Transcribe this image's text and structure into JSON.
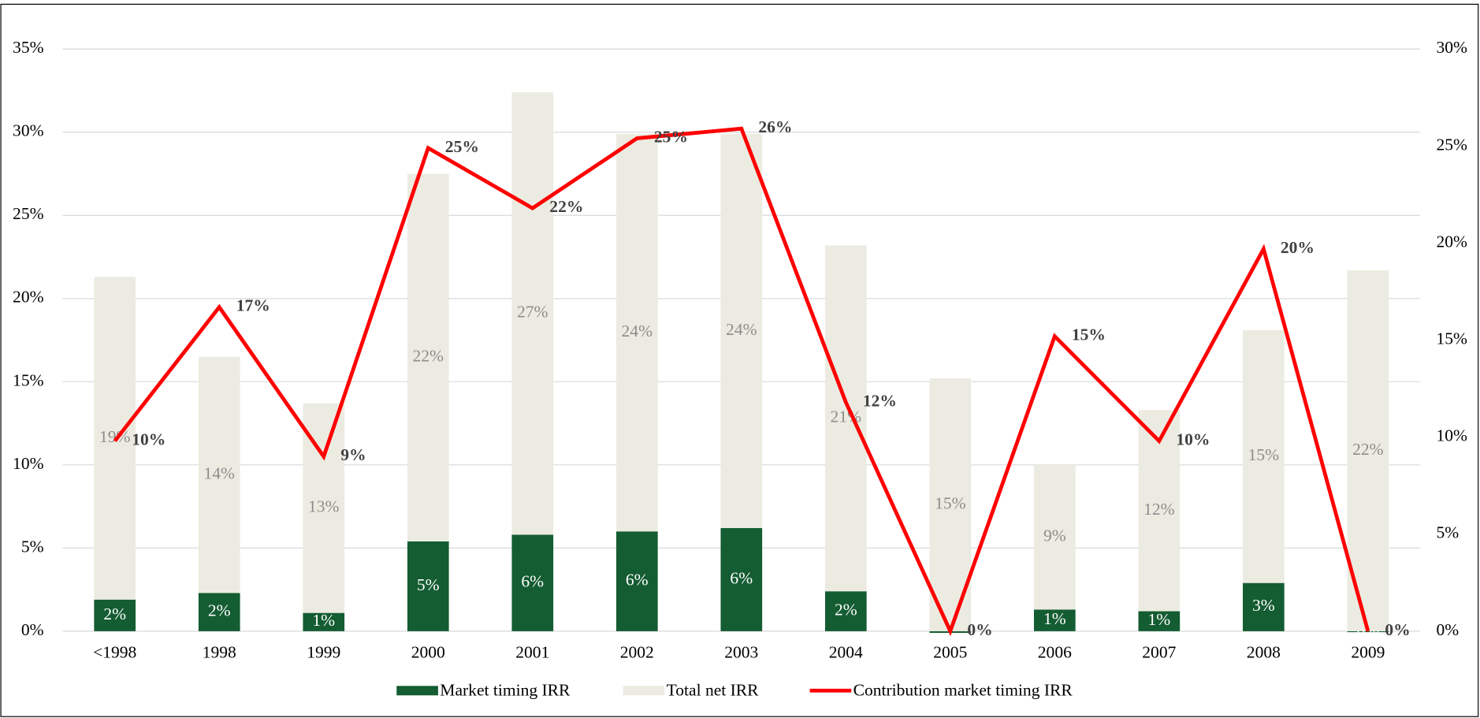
{
  "chart_data": {
    "type": "bar",
    "stacked": true,
    "categories": [
      "<1998",
      "1998",
      "1999",
      "2000",
      "2001",
      "2002",
      "2003",
      "2004",
      "2005",
      "2006",
      "2007",
      "2008",
      "2009"
    ],
    "series": [
      {
        "name": "Market timing IRR",
        "type": "bar",
        "color": "#145c32",
        "label_color": "#ffffff",
        "values": [
          1.9,
          2.3,
          1.1,
          5.4,
          5.8,
          6.0,
          6.2,
          2.4,
          -0.1,
          1.3,
          1.2,
          2.9,
          0
        ],
        "value_labels": [
          "2%",
          "2%",
          "1%",
          "5%",
          "6%",
          "6%",
          "6%",
          "2%",
          "",
          "1%",
          "1%",
          "3%",
          "0%"
        ]
      },
      {
        "name": "Total net IRR",
        "type": "bar",
        "color": "#ecebe1",
        "label_color": "#8c8c8c",
        "values": [
          19.4,
          14.2,
          12.6,
          22.1,
          26.6,
          23.9,
          23.7,
          20.8,
          15.2,
          8.7,
          12.1,
          15.2,
          21.7
        ],
        "value_labels": [
          "19%",
          "14%",
          "13%",
          "22%",
          "27%",
          "24%",
          "24%",
          "21%",
          "15%",
          "9%",
          "12%",
          "15%",
          "22%"
        ]
      },
      {
        "name": "Contribution market timing IRR",
        "type": "line",
        "axis": "y2",
        "color": "#ff0000",
        "label_color": "#404040",
        "values": [
          9.8,
          16.7,
          9.0,
          24.9,
          21.8,
          25.4,
          25.9,
          11.8,
          0,
          15.2,
          9.8,
          19.7,
          0
        ],
        "value_labels": [
          "10%",
          "17%",
          "9%",
          "25%",
          "22%",
          "25%",
          "26%",
          "12%",
          "0%",
          "15%",
          "10%",
          "20%",
          "0%"
        ]
      }
    ],
    "ylim": [
      0,
      35
    ],
    "yticks": [
      {
        "value": 0,
        "label": "0%"
      },
      {
        "value": 5,
        "label": "5%"
      },
      {
        "value": 10,
        "label": "10%"
      },
      {
        "value": 15,
        "label": "15%"
      },
      {
        "value": 20,
        "label": "20%"
      },
      {
        "value": 25,
        "label": "25%"
      },
      {
        "value": 30,
        "label": "30%"
      },
      {
        "value": 35,
        "label": "35%"
      }
    ],
    "y2lim": [
      0,
      30
    ],
    "y2ticks": [
      {
        "value": 0,
        "label": "0%"
      },
      {
        "value": 5,
        "label": "5%"
      },
      {
        "value": 10,
        "label": "10%"
      },
      {
        "value": 15,
        "label": "15%"
      },
      {
        "value": 20,
        "label": "20%"
      },
      {
        "value": 25,
        "label": "25%"
      },
      {
        "value": 30,
        "label": "30%"
      }
    ],
    "grid": true,
    "legend": "bottom"
  }
}
